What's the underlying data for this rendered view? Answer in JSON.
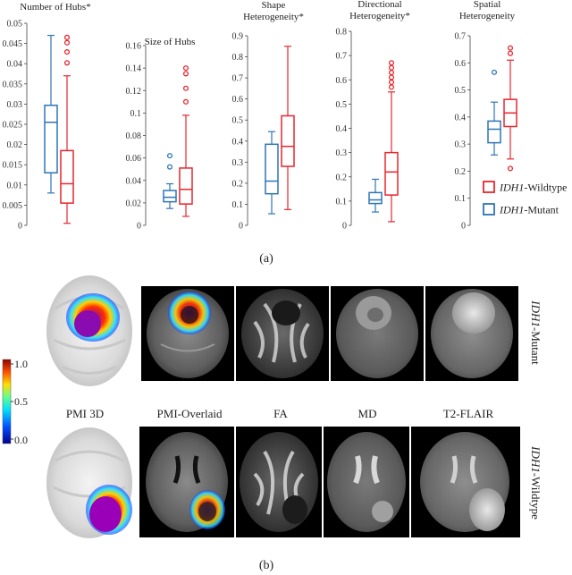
{
  "chart_data": [
    {
      "type": "box",
      "title": "Number of Hubs*",
      "ylim": [
        0,
        0.05
      ],
      "ticks": [
        "0",
        "0.005",
        "0.01",
        "0.015",
        "0.02",
        "0.025",
        "0.03",
        "0.035",
        "0.04",
        "0.045",
        "0.05"
      ],
      "tick_values": [
        0,
        0.005,
        0.01,
        0.015,
        0.02,
        0.025,
        0.03,
        0.035,
        0.04,
        0.045,
        0.05
      ],
      "series": [
        {
          "name": "IDH1-Mutant",
          "min": 0.008,
          "q1": 0.013,
          "median": 0.0255,
          "q3": 0.0297,
          "max": 0.047,
          "outliers": []
        },
        {
          "name": "IDH1-Wildtype",
          "min": 0.0005,
          "q1": 0.0055,
          "median": 0.0103,
          "q3": 0.0185,
          "max": 0.037,
          "outliers": [
            0.0402,
            0.0429,
            0.0452,
            0.0465
          ]
        }
      ]
    },
    {
      "type": "box",
      "title": "Size of Hubs",
      "ylim": [
        0,
        0.16
      ],
      "ticks": [
        "0",
        "0.02",
        "0.04",
        "0.06",
        "0.08",
        "0.1",
        "0.12",
        "0.14",
        "0.16"
      ],
      "tick_values": [
        0,
        0.02,
        0.04,
        0.06,
        0.08,
        0.1,
        0.12,
        0.14,
        0.16
      ],
      "series": [
        {
          "name": "IDH1-Mutant",
          "min": 0.015,
          "q1": 0.021,
          "median": 0.025,
          "q3": 0.031,
          "max": 0.037,
          "outliers": [
            0.052,
            0.062
          ]
        },
        {
          "name": "IDH1-Wildtype",
          "min": 0.008,
          "q1": 0.019,
          "median": 0.032,
          "q3": 0.051,
          "max": 0.098,
          "outliers": [
            0.11,
            0.122,
            0.135,
            0.14
          ]
        }
      ]
    },
    {
      "type": "box",
      "title": "Shape Heterogeneity*",
      "ylim": [
        0,
        0.9
      ],
      "ticks": [
        "0",
        "0.1",
        "0.2",
        "0.3",
        "0.4",
        "0.5",
        "0.6",
        "0.7",
        "0.8",
        "0.9"
      ],
      "tick_values": [
        0,
        0.1,
        0.2,
        0.3,
        0.4,
        0.5,
        0.6,
        0.7,
        0.8,
        0.9
      ],
      "series": [
        {
          "name": "IDH1-Mutant",
          "min": 0.055,
          "q1": 0.15,
          "median": 0.21,
          "q3": 0.385,
          "max": 0.445,
          "outliers": []
        },
        {
          "name": "IDH1-Wildtype",
          "min": 0.075,
          "q1": 0.28,
          "median": 0.375,
          "q3": 0.52,
          "max": 0.85,
          "outliers": []
        }
      ]
    },
    {
      "type": "box",
      "title": "Directional Heterogeneity*",
      "ylim": [
        0,
        0.8
      ],
      "ticks": [
        "0",
        "0.1",
        "0.2",
        "0.3",
        "0.4",
        "0.5",
        "0.6",
        "0.7",
        "0.8"
      ],
      "tick_values": [
        0,
        0.1,
        0.2,
        0.3,
        0.4,
        0.5,
        0.6,
        0.7,
        0.8
      ],
      "series": [
        {
          "name": "IDH1-Mutant",
          "min": 0.055,
          "q1": 0.09,
          "median": 0.105,
          "q3": 0.135,
          "max": 0.19,
          "outliers": []
        },
        {
          "name": "IDH1-Wildtype",
          "min": 0.015,
          "q1": 0.125,
          "median": 0.22,
          "q3": 0.3,
          "max": 0.55,
          "outliers": [
            0.57,
            0.59,
            0.61,
            0.63,
            0.65,
            0.67
          ]
        }
      ]
    },
    {
      "type": "box",
      "title": "Spatial Heterogeneity",
      "ylim": [
        0,
        0.7
      ],
      "ticks": [
        "0",
        "0.1",
        "0.2",
        "0.3",
        "0.4",
        "0.5",
        "0.6",
        "0.7"
      ],
      "tick_values": [
        0,
        0.1,
        0.2,
        0.3,
        0.4,
        0.5,
        0.6,
        0.7
      ],
      "series": [
        {
          "name": "IDH1-Mutant",
          "min": 0.26,
          "q1": 0.305,
          "median": 0.355,
          "q3": 0.385,
          "max": 0.455,
          "outliers": [
            0.565
          ]
        },
        {
          "name": "IDH1-Wildtype",
          "min": 0.245,
          "q1": 0.365,
          "median": 0.415,
          "q3": 0.465,
          "max": 0.61,
          "outliers": [
            0.21,
            0.635,
            0.655
          ]
        }
      ]
    }
  ],
  "colors": {
    "mutant": "#2e75b6",
    "wildtype": "#e8262d"
  },
  "legend": [
    {
      "italic": "IDH1",
      "rest": "-Wildtype",
      "color": "#e8262d"
    },
    {
      "italic": "IDH1",
      "rest": "-Mutant",
      "color": "#2e75b6"
    }
  ],
  "caption_a": "(a)",
  "caption_b": "(b)",
  "colorbar": {
    "ticks": [
      "1.0",
      "0.5",
      "0.0"
    ]
  },
  "scan_labels": [
    "PMI 3D",
    "PMI-Overlaid",
    "FA",
    "MD",
    "T2-FLAIR"
  ],
  "row_labels": {
    "top": {
      "italic": "IDH1",
      "rest": "-Mutant"
    },
    "bottom": {
      "italic": "IDH1",
      "rest": "-Wildtype"
    }
  }
}
